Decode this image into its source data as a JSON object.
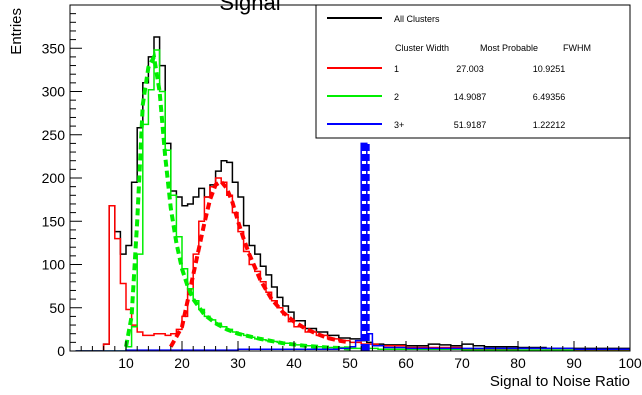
{
  "chart_data": {
    "type": "line",
    "title": "Signal",
    "xlabel": "Signal to Noise Ratio",
    "ylabel": "Entries",
    "xlim": [
      0,
      100
    ],
    "ylim": [
      0,
      400
    ],
    "x_ticks": [
      10,
      20,
      30,
      40,
      50,
      60,
      70,
      80,
      90,
      100
    ],
    "y_ticks": [
      0,
      50,
      100,
      150,
      200,
      250,
      300,
      350
    ],
    "legend": {
      "placement": "top-right",
      "header": [
        "Cluster Width",
        "Most Probable",
        "FWHM"
      ],
      "rows": [
        {
          "series": "All Clusters",
          "label": "All Clusters",
          "color": "#000000"
        },
        {
          "series": "1",
          "label": "1",
          "most_probable": "27.003",
          "fwhm": "10.9251",
          "color": "#ff0000"
        },
        {
          "series": "2",
          "label": "2",
          "most_probable": "14.9087",
          "fwhm": "6.49356",
          "color": "#00ee00"
        },
        {
          "series": "3+",
          "label": "3+",
          "most_probable": "51.9187",
          "fwhm": "1.22212",
          "color": "#0000ff"
        }
      ]
    },
    "series": [
      {
        "name": "All Clusters",
        "color": "#000000",
        "style": "step",
        "x": [
          1,
          2,
          3,
          4,
          5,
          6,
          7,
          8,
          9,
          10,
          11,
          12,
          13,
          14,
          15,
          16,
          17,
          18,
          19,
          20,
          21,
          22,
          23,
          24,
          25,
          26,
          27,
          28,
          29,
          30,
          31,
          32,
          33,
          34,
          35,
          36,
          37,
          38,
          39,
          40,
          42,
          44,
          46,
          48,
          50,
          51,
          52,
          53,
          54,
          56,
          58,
          60,
          62,
          64,
          66,
          68,
          70,
          72,
          74,
          76,
          78,
          80,
          85,
          90,
          95,
          100
        ],
        "y": [
          0,
          0,
          0,
          0,
          0,
          8,
          168,
          138,
          112,
          122,
          195,
          258,
          310,
          340,
          363,
          330,
          240,
          185,
          178,
          168,
          170,
          178,
          188,
          178,
          192,
          208,
          220,
          218,
          195,
          178,
          145,
          122,
          112,
          98,
          88,
          74,
          62,
          52,
          45,
          35,
          26,
          22,
          18,
          15,
          14,
          14,
          12,
          10,
          8,
          7,
          7,
          6,
          6,
          8,
          7,
          6,
          8,
          6,
          5,
          5,
          5,
          4,
          3,
          3,
          3,
          2
        ]
      },
      {
        "name": "1",
        "color": "#ff0000",
        "style": "step",
        "x": [
          1,
          2,
          3,
          4,
          5,
          6,
          7,
          8,
          9,
          10,
          11,
          12,
          13,
          14,
          15,
          16,
          17,
          18,
          19,
          20,
          21,
          22,
          23,
          24,
          25,
          26,
          27,
          28,
          29,
          30,
          31,
          32,
          33,
          34,
          35,
          36,
          37,
          38,
          39,
          40,
          42,
          44,
          46,
          48,
          50,
          52,
          55,
          60,
          70,
          80,
          90,
          100
        ],
        "y": [
          0,
          0,
          0,
          0,
          0,
          8,
          168,
          130,
          78,
          48,
          30,
          22,
          18,
          18,
          20,
          20,
          18,
          20,
          25,
          40,
          72,
          112,
          150,
          178,
          190,
          200,
          195,
          180,
          160,
          138,
          115,
          100,
          92,
          80,
          68,
          58,
          50,
          42,
          34,
          28,
          22,
          18,
          14,
          12,
          10,
          8,
          6,
          4,
          2,
          1,
          1,
          0
        ]
      },
      {
        "name": "1 fit",
        "color": "#ff0000",
        "style": "dashed",
        "x": [
          18,
          20,
          22,
          24,
          25,
          26,
          27,
          28,
          29,
          30,
          31,
          32,
          34,
          36,
          38,
          40,
          42,
          44,
          46,
          48,
          50
        ],
        "y": [
          5,
          28,
          88,
          148,
          175,
          192,
          196,
          188,
          172,
          150,
          130,
          112,
          82,
          60,
          45,
          34,
          26,
          20,
          15,
          12,
          10
        ]
      },
      {
        "name": "2",
        "color": "#00ee00",
        "style": "step",
        "x": [
          1,
          2,
          3,
          4,
          5,
          6,
          7,
          8,
          9,
          10,
          11,
          12,
          13,
          14,
          15,
          16,
          17,
          18,
          19,
          20,
          21,
          22,
          23,
          24,
          25,
          26,
          27,
          28,
          29,
          30,
          31,
          32,
          33,
          34,
          35,
          36,
          37,
          38,
          40,
          42,
          44,
          46,
          48,
          50,
          52,
          55,
          60,
          70,
          80,
          90,
          100
        ],
        "y": [
          0,
          0,
          0,
          0,
          0,
          0,
          0,
          0,
          0,
          5,
          28,
          112,
          262,
          302,
          348,
          300,
          232,
          180,
          132,
          95,
          72,
          58,
          48,
          40,
          36,
          32,
          28,
          25,
          22,
          20,
          18,
          16,
          14,
          13,
          12,
          11,
          10,
          9,
          7,
          6,
          5,
          4,
          4,
          3,
          3,
          2,
          2,
          1,
          1,
          0,
          0
        ]
      },
      {
        "name": "2 fit",
        "color": "#00ee00",
        "style": "dashed",
        "x": [
          10,
          11,
          12,
          13,
          14,
          15,
          16,
          17,
          18,
          19,
          20,
          21,
          22,
          24,
          26,
          28,
          30,
          34,
          38,
          42,
          46,
          50
        ],
        "y": [
          5,
          40,
          150,
          285,
          328,
          340,
          300,
          225,
          165,
          125,
          95,
          75,
          60,
          42,
          32,
          25,
          20,
          14,
          9,
          6,
          4,
          3
        ]
      },
      {
        "name": "3+",
        "color": "#0000ff",
        "style": "step",
        "x": [
          1,
          5,
          10,
          20,
          30,
          40,
          48,
          50,
          51,
          52,
          53,
          54,
          56,
          60,
          70,
          80,
          90,
          100
        ],
        "y": [
          0,
          0,
          1,
          1,
          2,
          2,
          3,
          5,
          12,
          240,
          20,
          6,
          4,
          3,
          3,
          3,
          2,
          2
        ]
      }
    ]
  }
}
